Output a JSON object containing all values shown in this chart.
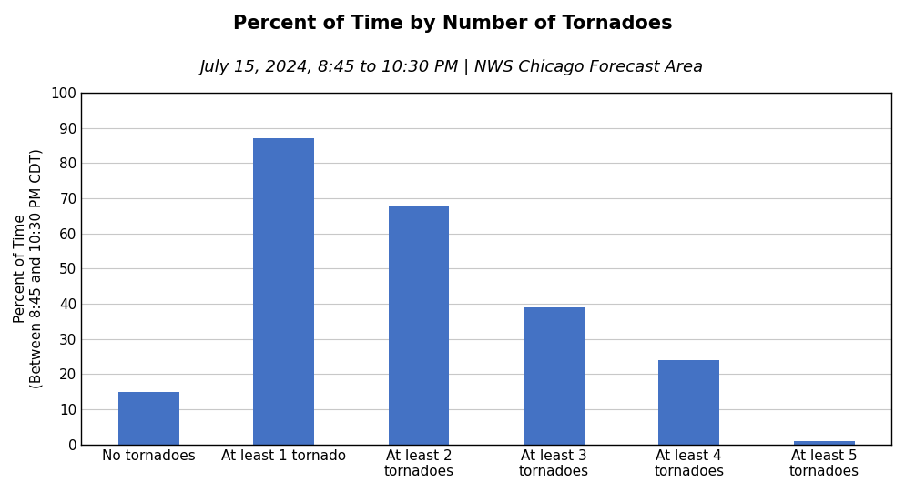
{
  "title": "Percent of Time by Number of Tornadoes",
  "subtitle": "July 15, 2024, 8:45 to 10:30 PM | NWS Chicago Forecast Area",
  "categories": [
    "No tornadoes",
    "At least 1 tornado",
    "At least 2\ntornadoes",
    "At least 3\ntornadoes",
    "At least 4\ntornadoes",
    "At least 5\ntornadoes"
  ],
  "values": [
    15,
    87,
    68,
    39,
    24,
    1
  ],
  "bar_color": "#4472C4",
  "ylabel_line1": "Percent of Time",
  "ylabel_line2": "(Between 8:45 and 10:30 PM CDT)",
  "ylim": [
    0,
    100
  ],
  "yticks": [
    0,
    10,
    20,
    30,
    40,
    50,
    60,
    70,
    80,
    90,
    100
  ],
  "background_color": "#ffffff",
  "title_fontsize": 15,
  "subtitle_fontsize": 13,
  "ylabel_fontsize": 11,
  "tick_fontsize": 11,
  "grid_color": "#c8c8c8",
  "border_color": "#000000"
}
